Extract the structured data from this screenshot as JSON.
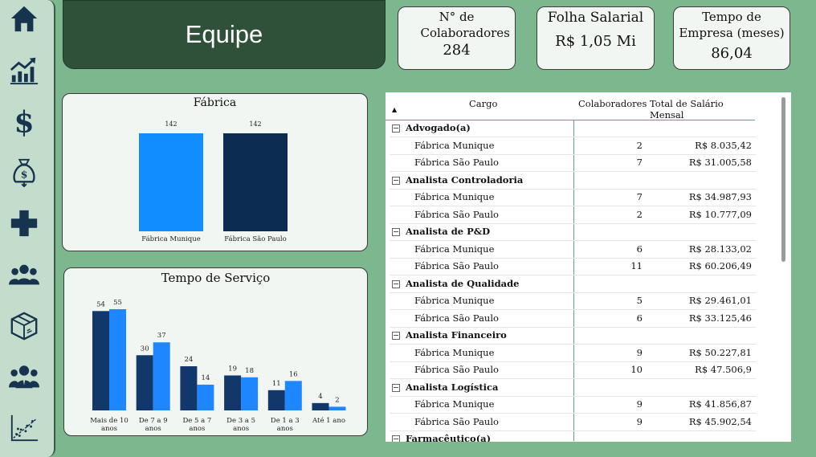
{
  "header": {
    "title": "Equipe"
  },
  "sidebar": {
    "items": [
      {
        "icon": "home-icon"
      },
      {
        "icon": "bar-chart-growth-icon"
      },
      {
        "icon": "dollar-icon"
      },
      {
        "icon": "money-bag-icon"
      },
      {
        "icon": "plus-health-icon"
      },
      {
        "icon": "group-icon"
      },
      {
        "icon": "box-icon"
      },
      {
        "icon": "team-icon"
      },
      {
        "icon": "scatter-plot-icon"
      }
    ],
    "color": "#17344f"
  },
  "kpis": [
    {
      "label": "N° de Colaboradores",
      "value": "284"
    },
    {
      "label": "Folha Salarial",
      "value": "R$ 1,05 Mi"
    },
    {
      "label": "Tempo de Empresa (meses)",
      "value": "86,04"
    }
  ],
  "chart_data": [
    {
      "type": "bar",
      "title": "Fábrica",
      "categories": [
        "Fábrica Munique",
        "Fábrica São Paulo"
      ],
      "values": [
        142,
        142
      ],
      "colors": [
        "#118dff",
        "#0c2c52"
      ],
      "grid": false
    },
    {
      "type": "bar",
      "title": "Tempo de Serviço",
      "categories": [
        "Mais de 10 anos",
        "De 7 a 9 anos",
        "De 5 a 7 anos",
        "De 3 a 5 anos",
        "De 1 a 3 anos",
        "Até 1 ano"
      ],
      "series": [
        {
          "values": [
            54,
            30,
            24,
            19,
            11,
            4
          ],
          "color": "#12386b"
        },
        {
          "values": [
            55,
            37,
            14,
            18,
            16,
            2
          ],
          "color": "#1e86ff"
        }
      ],
      "grid": false
    }
  ],
  "table": {
    "sort_indicator": "▲",
    "columns": [
      "Cargo",
      "Colaboradores",
      "Total de Salário Mensal"
    ],
    "groups": [
      {
        "name": "Advogado(a)",
        "rows": [
          {
            "name": "Fábrica Munique",
            "count": "2",
            "total": "R$ 8.035,42"
          },
          {
            "name": "Fábrica São Paulo",
            "count": "7",
            "total": "R$ 31.005,58"
          }
        ]
      },
      {
        "name": "Analista Controladoria",
        "rows": [
          {
            "name": "Fábrica Munique",
            "count": "7",
            "total": "R$ 34.987,93"
          },
          {
            "name": "Fábrica São Paulo",
            "count": "2",
            "total": "R$ 10.777,09"
          }
        ]
      },
      {
        "name": "Analista de P&D",
        "rows": [
          {
            "name": "Fábrica Munique",
            "count": "6",
            "total": "R$ 28.133,02"
          },
          {
            "name": "Fábrica São Paulo",
            "count": "11",
            "total": "R$ 60.206,49"
          }
        ]
      },
      {
        "name": "Analista de Qualidade",
        "rows": [
          {
            "name": "Fábrica Munique",
            "count": "5",
            "total": "R$ 29.461,01"
          },
          {
            "name": "Fábrica São Paulo",
            "count": "6",
            "total": "R$ 33.125,46"
          }
        ]
      },
      {
        "name": "Analista Financeiro",
        "rows": [
          {
            "name": "Fábrica Munique",
            "count": "9",
            "total": "R$ 50.227,81"
          },
          {
            "name": "Fábrica São Paulo",
            "count": "10",
            "total": "R$ 47.506,9"
          }
        ]
      },
      {
        "name": "Analista Logística",
        "rows": [
          {
            "name": "Fábrica Munique",
            "count": "9",
            "total": "R$ 41.856,87"
          },
          {
            "name": "Fábrica São Paulo",
            "count": "9",
            "total": "R$ 45.902,54"
          }
        ]
      },
      {
        "name": "Farmacêutico(a)",
        "rows": []
      }
    ]
  }
}
